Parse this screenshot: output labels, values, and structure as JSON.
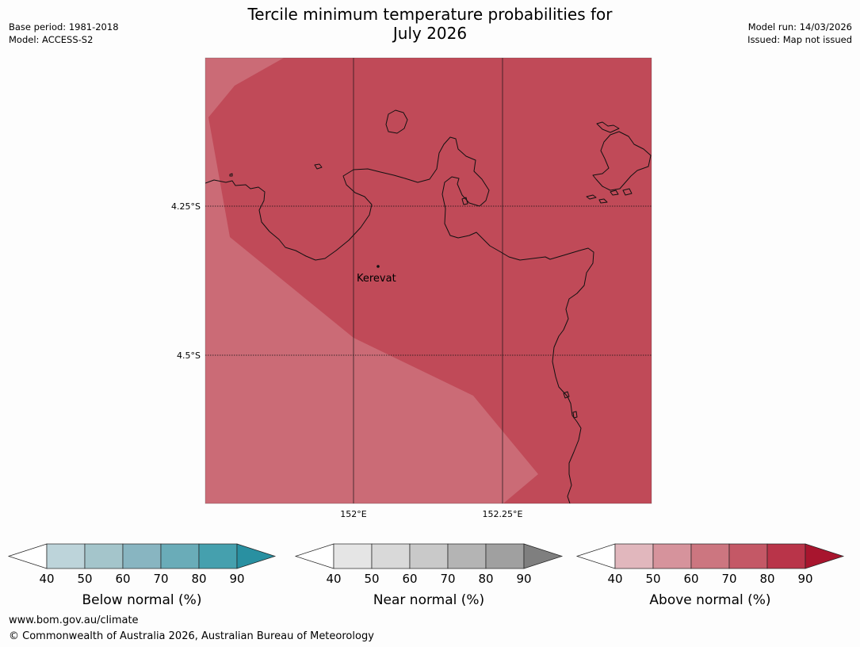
{
  "title": {
    "line1": "Tercile minimum temperature probabilities for",
    "line2": "July 2026"
  },
  "meta": {
    "base_period": "Base period: 1981-2018",
    "model": "Model: ACCESS-S2",
    "model_run": "Model run: 14/03/2026",
    "issued": "Issued: Map not issued"
  },
  "map": {
    "gridlines": {
      "lat": [
        "4.25°S",
        "4.5°S"
      ],
      "lon": [
        "152°E",
        "152.25°E"
      ]
    },
    "places": [
      {
        "name": "Kerevat"
      }
    ],
    "fill_colors": {
      "above_80_90": "#c04a58",
      "above_70_80": "#cb6b76"
    }
  },
  "legends": [
    {
      "label": "Below normal (%)",
      "ticks": [
        "40",
        "50",
        "60",
        "70",
        "80",
        "90"
      ],
      "colors": [
        "#ffffff",
        "#bdd4da",
        "#a4c5cb",
        "#88b5c1",
        "#6aacb8",
        "#45a0ae",
        "#2990a1"
      ]
    },
    {
      "label": "Near normal (%)",
      "ticks": [
        "40",
        "50",
        "60",
        "70",
        "80",
        "90"
      ],
      "colors": [
        "#ffffff",
        "#e5e5e5",
        "#d9d9d9",
        "#c9c9c9",
        "#b4b4b4",
        "#a0a0a0",
        "#7f7f7f"
      ]
    },
    {
      "label": "Above normal (%)",
      "ticks": [
        "40",
        "50",
        "60",
        "70",
        "80",
        "90"
      ],
      "colors": [
        "#ffffff",
        "#e1b7bd",
        "#d6939c",
        "#cc7680",
        "#c45866",
        "#b93449",
        "#a8152e"
      ]
    }
  ],
  "footer": {
    "url": "www.bom.gov.au/climate",
    "copyright": "© Commonwealth of Australia 2026, Australian Bureau of Meteorology"
  }
}
